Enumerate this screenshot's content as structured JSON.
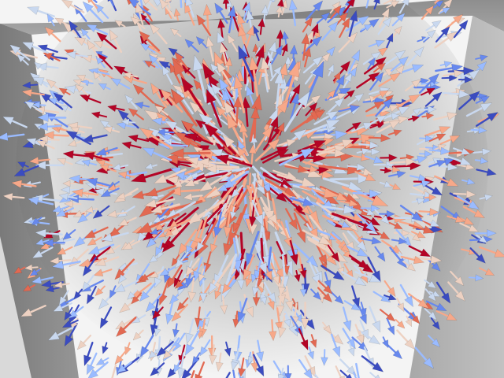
{
  "scene": {
    "subject": "vector-field-glyph-render",
    "background_color": "#f4f4f4",
    "box_colors": {
      "top_face": "#9a9a9a",
      "left_face": "#8a8a8a",
      "right_face": "#b4b4b4",
      "edge_light": "#c8c8c8"
    },
    "colormap": [
      "#3b4cc0",
      "#6788ee",
      "#9abbff",
      "#c9d8ef",
      "#edd1c2",
      "#f7a889",
      "#e26952",
      "#b40426"
    ],
    "glyph_type": "arrow",
    "glyph_count_approx": 1400,
    "field_center": [
      0.5,
      0.44
    ]
  }
}
